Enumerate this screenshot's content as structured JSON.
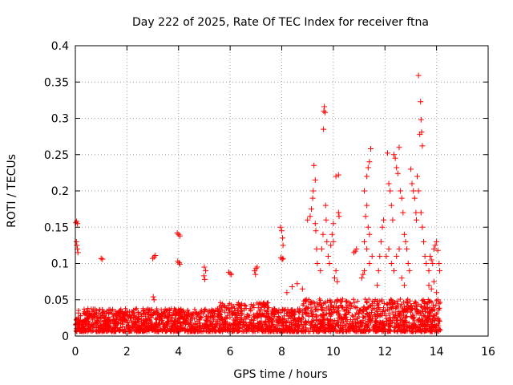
{
  "chart_data": {
    "type": "scatter",
    "title": "Day 222 of 2025, Rate Of TEC Index for receiver ftna",
    "xlabel": "GPS time / hours",
    "ylabel": "ROTI / TECUs",
    "xlim": [
      0,
      16
    ],
    "ylim": [
      0,
      0.4
    ],
    "xticks": [
      0,
      2,
      4,
      6,
      8,
      10,
      12,
      14,
      16
    ],
    "yticks": [
      0,
      0.05,
      0.1,
      0.15,
      0.2,
      0.25,
      0.3,
      0.35,
      0.4
    ],
    "xtick_labels": [
      "0",
      "2",
      "4",
      "6",
      "8",
      "10",
      "12",
      "14",
      "16"
    ],
    "ytick_labels": [
      "0",
      "0.05",
      "0.1",
      "0.15",
      "0.2",
      "0.25",
      "0.3",
      "0.35",
      "0.4"
    ],
    "grid": true,
    "marker": "+",
    "color": "#ff0000",
    "series": [
      {
        "name": "ROTI",
        "points": [
          [
            0.02,
            0.156
          ],
          [
            0.05,
            0.158
          ],
          [
            0.08,
            0.155
          ],
          [
            0.04,
            0.13
          ],
          [
            0.06,
            0.125
          ],
          [
            0.08,
            0.12
          ],
          [
            0.1,
            0.115
          ],
          [
            1.0,
            0.107
          ],
          [
            1.05,
            0.106
          ],
          [
            3.0,
            0.107
          ],
          [
            3.05,
            0.109
          ],
          [
            3.1,
            0.111
          ],
          [
            3.02,
            0.054
          ],
          [
            3.05,
            0.05
          ],
          [
            3.95,
            0.142
          ],
          [
            4.0,
            0.14
          ],
          [
            4.05,
            0.138
          ],
          [
            3.97,
            0.103
          ],
          [
            4.02,
            0.101
          ],
          [
            4.05,
            0.099
          ],
          [
            5.0,
            0.095
          ],
          [
            5.05,
            0.09
          ],
          [
            4.98,
            0.083
          ],
          [
            5.02,
            0.078
          ],
          [
            5.95,
            0.088
          ],
          [
            6.0,
            0.086
          ],
          [
            6.05,
            0.085
          ],
          [
            6.95,
            0.09
          ],
          [
            7.0,
            0.093
          ],
          [
            7.05,
            0.095
          ],
          [
            6.98,
            0.085
          ],
          [
            7.95,
            0.15
          ],
          [
            8.0,
            0.145
          ],
          [
            8.03,
            0.135
          ],
          [
            8.05,
            0.125
          ],
          [
            7.97,
            0.108
          ],
          [
            8.02,
            0.106
          ],
          [
            8.05,
            0.107
          ],
          [
            8.2,
            0.06
          ],
          [
            8.4,
            0.068
          ],
          [
            8.6,
            0.072
          ],
          [
            8.8,
            0.065
          ],
          [
            9.0,
            0.16
          ],
          [
            9.1,
            0.165
          ],
          [
            9.15,
            0.175
          ],
          [
            9.2,
            0.19
          ],
          [
            9.22,
            0.2
          ],
          [
            9.25,
            0.235
          ],
          [
            9.3,
            0.215
          ],
          [
            9.3,
            0.155
          ],
          [
            9.32,
            0.145
          ],
          [
            9.35,
            0.12
          ],
          [
            9.38,
            0.1
          ],
          [
            9.5,
            0.09
          ],
          [
            9.55,
            0.12
          ],
          [
            9.6,
            0.14
          ],
          [
            9.62,
            0.285
          ],
          [
            9.63,
            0.31
          ],
          [
            9.65,
            0.316
          ],
          [
            9.68,
            0.308
          ],
          [
            9.7,
            0.18
          ],
          [
            9.72,
            0.16
          ],
          [
            9.75,
            0.13
          ],
          [
            9.8,
            0.11
          ],
          [
            9.85,
            0.1
          ],
          [
            9.9,
            0.125
          ],
          [
            9.95,
            0.14
          ],
          [
            10.0,
            0.155
          ],
          [
            10.0,
            0.13
          ],
          [
            10.05,
            0.08
          ],
          [
            10.1,
            0.22
          ],
          [
            10.2,
            0.222
          ],
          [
            10.2,
            0.17
          ],
          [
            10.22,
            0.165
          ],
          [
            10.1,
            0.09
          ],
          [
            10.15,
            0.075
          ],
          [
            10.8,
            0.115
          ],
          [
            10.85,
            0.117
          ],
          [
            10.9,
            0.12
          ],
          [
            11.2,
            0.2
          ],
          [
            11.3,
            0.22
          ],
          [
            11.35,
            0.232
          ],
          [
            11.4,
            0.24
          ],
          [
            11.45,
            0.258
          ],
          [
            11.3,
            0.18
          ],
          [
            11.25,
            0.165
          ],
          [
            11.35,
            0.15
          ],
          [
            11.4,
            0.14
          ],
          [
            11.2,
            0.13
          ],
          [
            11.3,
            0.12
          ],
          [
            11.1,
            0.08
          ],
          [
            11.15,
            0.085
          ],
          [
            11.2,
            0.09
          ],
          [
            11.4,
            0.1
          ],
          [
            11.5,
            0.11
          ],
          [
            11.7,
            0.07
          ],
          [
            11.75,
            0.09
          ],
          [
            11.8,
            0.11
          ],
          [
            11.85,
            0.13
          ],
          [
            11.9,
            0.15
          ],
          [
            11.95,
            0.16
          ],
          [
            12.1,
            0.252
          ],
          [
            12.15,
            0.21
          ],
          [
            12.2,
            0.2
          ],
          [
            12.25,
            0.18
          ],
          [
            12.3,
            0.16
          ],
          [
            12.35,
            0.25
          ],
          [
            12.4,
            0.245
          ],
          [
            12.45,
            0.232
          ],
          [
            12.5,
            0.224
          ],
          [
            12.55,
            0.26
          ],
          [
            12.6,
            0.2
          ],
          [
            12.65,
            0.19
          ],
          [
            12.7,
            0.17
          ],
          [
            12.75,
            0.14
          ],
          [
            12.8,
            0.13
          ],
          [
            12.85,
            0.12
          ],
          [
            12.9,
            0.1
          ],
          [
            12.95,
            0.09
          ],
          [
            12.05,
            0.11
          ],
          [
            12.15,
            0.12
          ],
          [
            12.25,
            0.1
          ],
          [
            12.35,
            0.09
          ],
          [
            12.45,
            0.11
          ],
          [
            12.55,
            0.12
          ],
          [
            12.65,
            0.08
          ],
          [
            12.75,
            0.07
          ],
          [
            13.0,
            0.23
          ],
          [
            13.05,
            0.21
          ],
          [
            13.1,
            0.2
          ],
          [
            13.15,
            0.19
          ],
          [
            13.2,
            0.17
          ],
          [
            13.22,
            0.16
          ],
          [
            13.25,
            0.22
          ],
          [
            13.3,
            0.2
          ],
          [
            13.3,
            0.359
          ],
          [
            13.38,
            0.323
          ],
          [
            13.4,
            0.298
          ],
          [
            13.42,
            0.281
          ],
          [
            13.45,
            0.262
          ],
          [
            13.35,
            0.278
          ],
          [
            13.4,
            0.17
          ],
          [
            13.45,
            0.15
          ],
          [
            13.5,
            0.13
          ],
          [
            13.55,
            0.11
          ],
          [
            13.6,
            0.1
          ],
          [
            13.7,
            0.09
          ],
          [
            13.75,
            0.11
          ],
          [
            13.8,
            0.105
          ],
          [
            13.85,
            0.1
          ],
          [
            13.9,
            0.12
          ],
          [
            13.95,
            0.125
          ],
          [
            14.0,
            0.13
          ],
          [
            14.05,
            0.118
          ],
          [
            14.1,
            0.1
          ],
          [
            14.12,
            0.09
          ],
          [
            13.7,
            0.07
          ],
          [
            13.8,
            0.065
          ],
          [
            13.9,
            0.075
          ],
          [
            14.0,
            0.06
          ],
          [
            14.05,
            0.05
          ],
          [
            14.1,
            0.045
          ]
        ]
      }
    ]
  }
}
